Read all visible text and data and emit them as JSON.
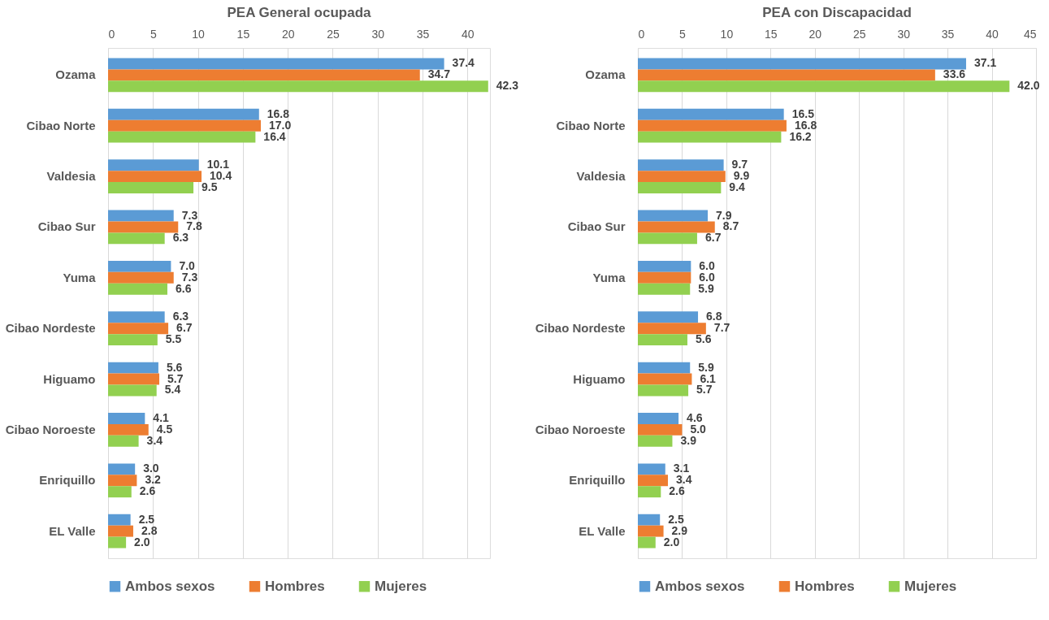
{
  "chart_data": [
    {
      "type": "bar",
      "orientation": "horizontal",
      "title": "PEA General ocupada",
      "categories": [
        "Ozama",
        "Cibao Norte",
        "Valdesia",
        "Cibao Sur",
        "Yuma",
        "Cibao Nordeste",
        "Higuamo",
        "Cibao Noroeste",
        "Enriquillo",
        "EL Valle"
      ],
      "series": [
        {
          "name": "Ambos sexos",
          "color": "#5b9bd5",
          "values": [
            37.4,
            16.8,
            10.1,
            7.3,
            7.0,
            6.3,
            5.6,
            4.1,
            3.0,
            2.5
          ],
          "value_labels": [
            "37.4",
            "16.8",
            "10.1",
            "7.3",
            "7.0",
            "6.3",
            "5.6",
            "4.1",
            "3.0",
            "2.5"
          ]
        },
        {
          "name": "Hombres",
          "color": "#ed7d31",
          "values": [
            34.7,
            17.0,
            10.4,
            7.8,
            7.3,
            6.7,
            5.7,
            4.5,
            3.2,
            2.8
          ],
          "value_labels": [
            "34.7",
            "17.0",
            "10.4",
            "7.8",
            "7.3",
            "6.7",
            "5.7",
            "4.5",
            "3.2",
            "2.8"
          ]
        },
        {
          "name": "Mujeres",
          "color": "#92d050",
          "values": [
            42.3,
            16.4,
            9.5,
            6.3,
            6.6,
            5.5,
            5.4,
            3.4,
            2.6,
            2.0
          ],
          "value_labels": [
            "42.3",
            "16.4",
            "9.5",
            "6.3",
            "6.6",
            "5.5",
            "5.4",
            "3.4",
            "2.6",
            "2.0"
          ]
        }
      ],
      "xlim": [
        0,
        42.5
      ],
      "xticks": [
        0,
        5,
        10,
        15,
        20,
        25,
        30,
        35,
        40
      ],
      "grid": "x",
      "legend": "bottom"
    },
    {
      "type": "bar",
      "orientation": "horizontal",
      "title": "PEA con Discapacidad",
      "categories": [
        "Ozama",
        "Cibao Norte",
        "Valdesia",
        "Cibao Sur",
        "Yuma",
        "Cibao Nordeste",
        "Higuamo",
        "Cibao Noroeste",
        "Enriquillo",
        "EL Valle"
      ],
      "series": [
        {
          "name": "Ambos sexos",
          "color": "#5b9bd5",
          "values": [
            37.1,
            16.5,
            9.7,
            7.9,
            6.0,
            6.8,
            5.9,
            4.6,
            3.1,
            2.5
          ],
          "value_labels": [
            "37.1",
            "16.5",
            "9.7",
            "7.9",
            "6.0",
            "6.8",
            "5.9",
            "4.6",
            "3.1",
            "2.5"
          ]
        },
        {
          "name": "Hombres",
          "color": "#ed7d31",
          "values": [
            33.6,
            16.8,
            9.9,
            8.7,
            6.0,
            7.7,
            6.1,
            5.0,
            3.4,
            2.9
          ],
          "value_labels": [
            "33.6",
            "16.8",
            "9.9",
            "8.7",
            "6.0",
            "7.7",
            "6.1",
            "5.0",
            "3.4",
            "2.9"
          ]
        },
        {
          "name": "Mujeres",
          "color": "#92d050",
          "values": [
            42.0,
            16.2,
            9.4,
            6.7,
            5.9,
            5.6,
            5.7,
            3.9,
            2.6,
            2.0
          ],
          "value_labels": [
            "42.0",
            "16.2",
            "9.4",
            "6.7",
            "5.9",
            "5.6",
            "5.7",
            "3.9",
            "2.6",
            "2.0"
          ]
        }
      ],
      "xlim": [
        0,
        45
      ],
      "xticks": [
        0,
        5,
        10,
        15,
        20,
        25,
        30,
        35,
        40,
        45
      ],
      "grid": "x",
      "legend": "bottom"
    }
  ]
}
